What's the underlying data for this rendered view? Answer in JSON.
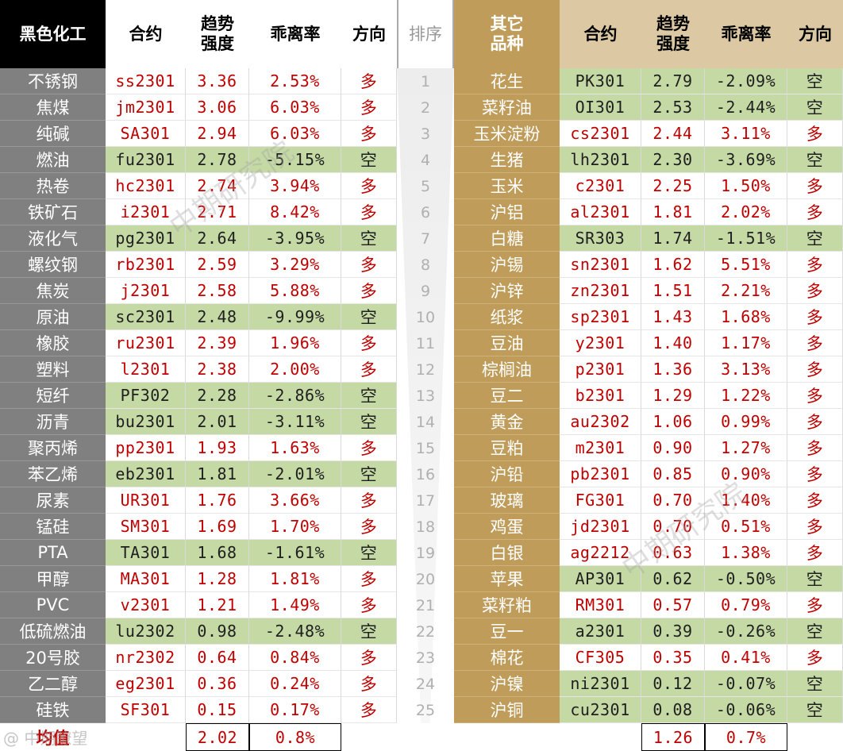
{
  "left": {
    "headers": [
      "黑色化工",
      "合约",
      "趋势强度",
      "乖离率",
      "方向"
    ],
    "rows": [
      [
        "不锈钢",
        "ss2301",
        "3.36",
        "2.53%",
        "多"
      ],
      [
        "焦煤",
        "jm2301",
        "3.06",
        "6.03%",
        "多"
      ],
      [
        "纯碱",
        "SA301",
        "2.94",
        "6.03%",
        "多"
      ],
      [
        "燃油",
        "fu2301",
        "2.78",
        "-5.15%",
        "空"
      ],
      [
        "热卷",
        "hc2301",
        "2.74",
        "3.94%",
        "多"
      ],
      [
        "铁矿石",
        "i2301",
        "2.71",
        "8.42%",
        "多"
      ],
      [
        "液化气",
        "pg2301",
        "2.64",
        "-3.95%",
        "空"
      ],
      [
        "螺纹钢",
        "rb2301",
        "2.59",
        "3.29%",
        "多"
      ],
      [
        "焦炭",
        "j2301",
        "2.58",
        "5.88%",
        "多"
      ],
      [
        "原油",
        "sc2301",
        "2.48",
        "-9.99%",
        "空"
      ],
      [
        "橡胶",
        "ru2301",
        "2.39",
        "1.96%",
        "多"
      ],
      [
        "塑料",
        "l2301",
        "2.38",
        "2.00%",
        "多"
      ],
      [
        "短纤",
        "PF302",
        "2.28",
        "-2.86%",
        "空"
      ],
      [
        "沥青",
        "bu2301",
        "2.01",
        "-3.11%",
        "空"
      ],
      [
        "聚丙烯",
        "pp2301",
        "1.93",
        "1.63%",
        "多"
      ],
      [
        "苯乙烯",
        "eb2301",
        "1.81",
        "-2.01%",
        "空"
      ],
      [
        "尿素",
        "UR301",
        "1.76",
        "3.66%",
        "多"
      ],
      [
        "锰硅",
        "SM301",
        "1.69",
        "1.70%",
        "多"
      ],
      [
        "PTA",
        "TA301",
        "1.68",
        "-1.61%",
        "空"
      ],
      [
        "甲醇",
        "MA301",
        "1.28",
        "1.81%",
        "多"
      ],
      [
        "PVC",
        "v2301",
        "1.21",
        "1.49%",
        "多"
      ],
      [
        "低硫燃油",
        "lu2302",
        "0.98",
        "-2.48%",
        "空"
      ],
      [
        "20号胶",
        "nr2302",
        "0.64",
        "0.84%",
        "多"
      ],
      [
        "乙二醇",
        "eg2301",
        "0.36",
        "0.24%",
        "多"
      ],
      [
        "硅铁",
        "SF301",
        "0.15",
        "0.17%",
        "多"
      ]
    ],
    "avg_label": "均值",
    "avg_strength": "2.02",
    "avg_deviation": "0.8%"
  },
  "rank": {
    "header": "排序",
    "values": [
      "1",
      "2",
      "3",
      "4",
      "5",
      "6",
      "7",
      "8",
      "9",
      "10",
      "11",
      "12",
      "13",
      "14",
      "15",
      "16",
      "17",
      "18",
      "19",
      "20",
      "21",
      "22",
      "23",
      "24",
      "25"
    ]
  },
  "right": {
    "headers": [
      "其它品种",
      "合约",
      "趋势强度",
      "乖离率",
      "方向"
    ],
    "rows": [
      [
        "花生",
        "PK301",
        "2.79",
        "-2.09%",
        "空"
      ],
      [
        "菜籽油",
        "OI301",
        "2.53",
        "-2.44%",
        "空"
      ],
      [
        "玉米淀粉",
        "cs2301",
        "2.44",
        "3.11%",
        "多"
      ],
      [
        "生猪",
        "lh2301",
        "2.30",
        "-3.69%",
        "空"
      ],
      [
        "玉米",
        "c2301",
        "2.25",
        "1.50%",
        "多"
      ],
      [
        "沪铝",
        "al2301",
        "1.81",
        "2.02%",
        "多"
      ],
      [
        "白糖",
        "SR303",
        "1.74",
        "-1.51%",
        "空"
      ],
      [
        "沪锡",
        "sn2301",
        "1.62",
        "5.51%",
        "多"
      ],
      [
        "沪锌",
        "zn2301",
        "1.51",
        "2.21%",
        "多"
      ],
      [
        "纸浆",
        "sp2301",
        "1.43",
        "1.68%",
        "多"
      ],
      [
        "豆油",
        "y2301",
        "1.40",
        "1.17%",
        "多"
      ],
      [
        "棕榈油",
        "p2301",
        "1.36",
        "3.13%",
        "多"
      ],
      [
        "豆二",
        "b2301",
        "1.29",
        "1.22%",
        "多"
      ],
      [
        "黄金",
        "au2302",
        "1.06",
        "0.99%",
        "多"
      ],
      [
        "豆粕",
        "m2301",
        "0.90",
        "1.27%",
        "多"
      ],
      [
        "沪铅",
        "pb2301",
        "0.85",
        "0.90%",
        "多"
      ],
      [
        "玻璃",
        "FG301",
        "0.70",
        "1.40%",
        "多"
      ],
      [
        "鸡蛋",
        "jd2301",
        "0.70",
        "0.51%",
        "多"
      ],
      [
        "白银",
        "ag2212",
        "0.63",
        "1.38%",
        "多"
      ],
      [
        "苹果",
        "AP301",
        "0.62",
        "-0.50%",
        "空"
      ],
      [
        "菜籽粕",
        "RM301",
        "0.57",
        "0.79%",
        "多"
      ],
      [
        "豆一",
        "a2301",
        "0.39",
        "-0.26%",
        "空"
      ],
      [
        "棉花",
        "CF305",
        "0.35",
        "0.41%",
        "多"
      ],
      [
        "沪镍",
        "ni2301",
        "0.12",
        "-0.07%",
        "空"
      ],
      [
        "沪铜",
        "cu2301",
        "0.08",
        "-0.06%",
        "空"
      ]
    ],
    "avg_strength": "1.26",
    "avg_deviation": "0.7%"
  },
  "colors": {
    "left_header_bg": "#000000",
    "right_header_bg": "#bf9c5a",
    "right_header_bg_light": "#dcc9a3",
    "category_bg": "#808080",
    "short_row_bg": "#c5d9a5",
    "long_text": "#c00000",
    "short_text": "#1f1f1f"
  },
  "watermark": "中期研究院",
  "logo_text": "@ 中期瞭望"
}
